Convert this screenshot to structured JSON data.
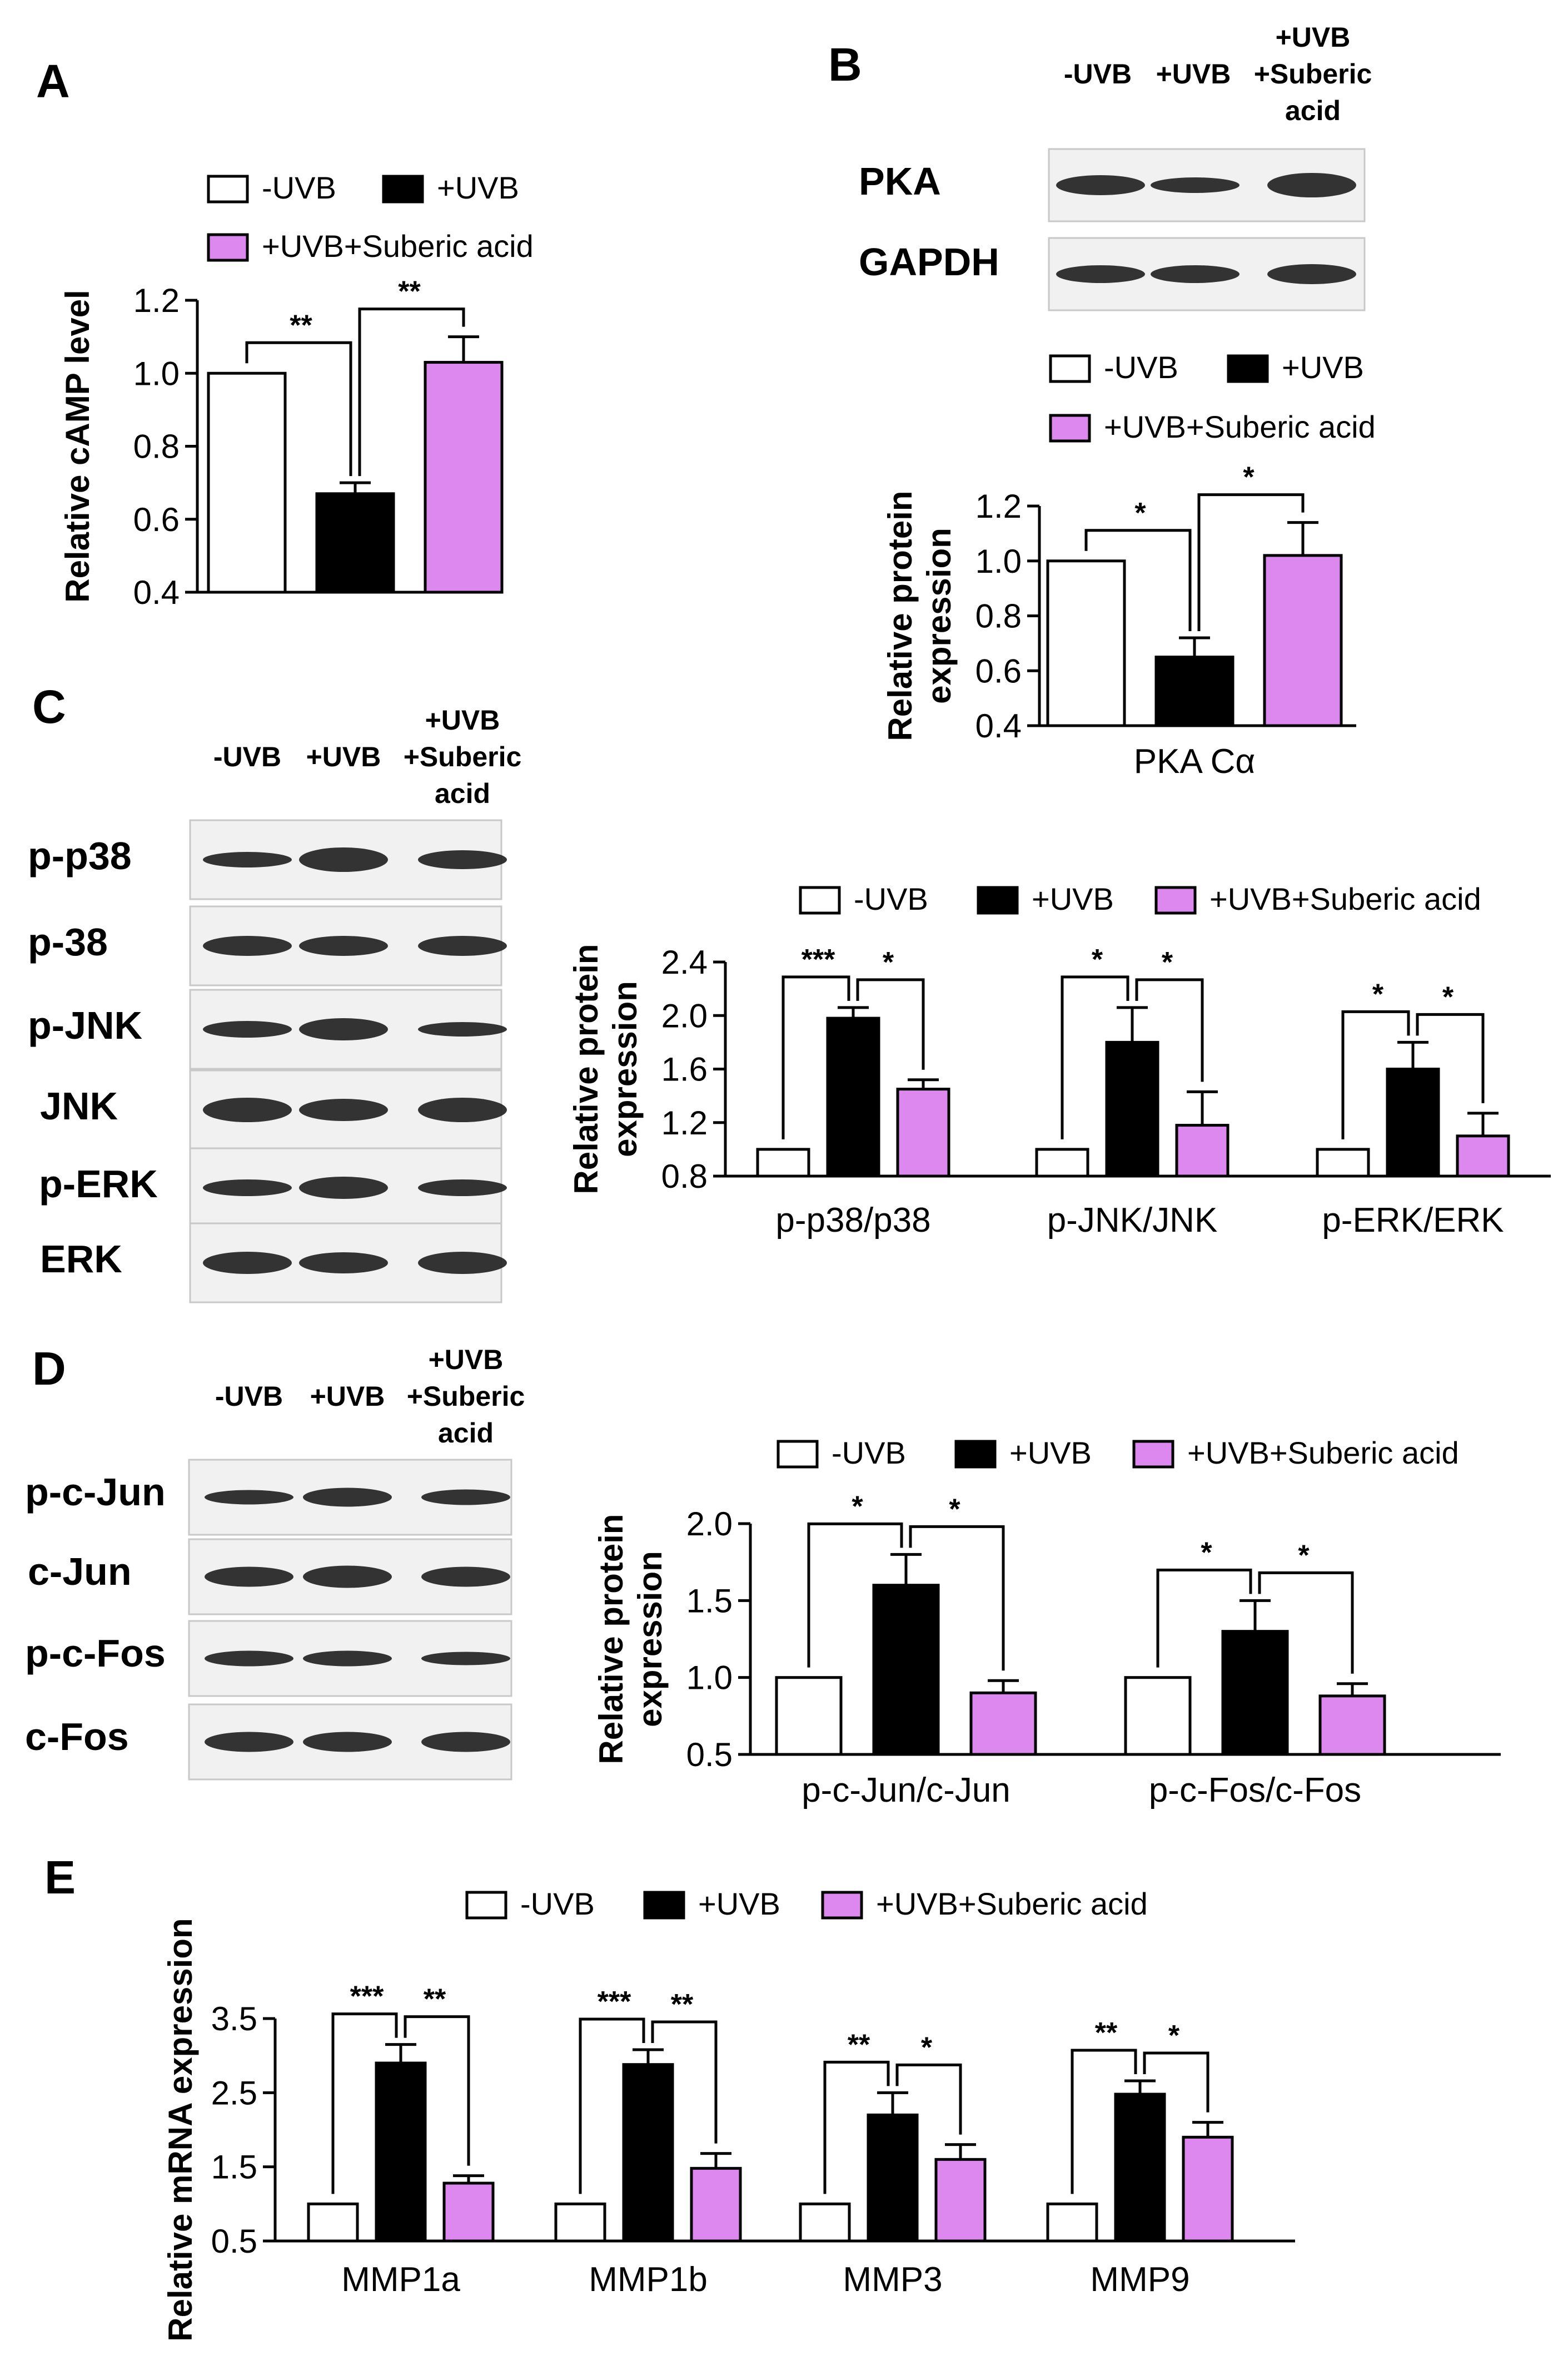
{
  "legend": {
    "neg_uvb": "-UVB",
    "pos_uvb": "+UVB",
    "uvb_suberic": "+UVB+Suberic acid"
  },
  "colors": {
    "neg_uvb": "#ffffff",
    "pos_uvb": "#000000",
    "uvb_suberic": "#dd88ee"
  },
  "lanes": {
    "neg_uvb": "-UVB",
    "pos_uvb": "+UVB",
    "uvb_suberic_1": "+UVB",
    "uvb_suberic_2": "+Suberic",
    "uvb_suberic_3": "acid"
  },
  "blots": {
    "B": [
      "PKA",
      "GAPDH"
    ],
    "C": [
      "p-p38",
      "p-38",
      "p-JNK",
      "JNK",
      "p-ERK",
      "ERK"
    ],
    "D": [
      "p-c-Jun",
      "c-Jun",
      "p-c-Fos",
      "c-Fos"
    ]
  },
  "chart_data": [
    {
      "panel": "A",
      "type": "bar",
      "ylabel": "Relative cAMP level",
      "ylim": [
        0.4,
        1.2
      ],
      "yticks": [
        "0.4",
        "0.6",
        "0.8",
        "1.0",
        "1.2"
      ],
      "categories": [
        ""
      ],
      "series": [
        {
          "name": "-UVB",
          "values": [
            1.0
          ],
          "errors": [
            0
          ]
        },
        {
          "name": "+UVB",
          "values": [
            0.67
          ],
          "errors": [
            0.03
          ]
        },
        {
          "name": "+UVB+Suberic acid",
          "values": [
            1.03
          ],
          "errors": [
            0.07
          ]
        }
      ],
      "significance": [
        [
          "**",
          "**"
        ]
      ],
      "legend_position": "top"
    },
    {
      "panel": "B",
      "type": "bar",
      "ylabel": "Relative protein expression",
      "ylim": [
        0.4,
        1.2
      ],
      "yticks": [
        "0.4",
        "0.6",
        "0.8",
        "1.0",
        "1.2"
      ],
      "categories": [
        "PKA Cα"
      ],
      "series": [
        {
          "name": "-UVB",
          "values": [
            1.0
          ],
          "errors": [
            0
          ]
        },
        {
          "name": "+UVB",
          "values": [
            0.65
          ],
          "errors": [
            0.07
          ]
        },
        {
          "name": "+UVB+Suberic acid",
          "values": [
            1.02
          ],
          "errors": [
            0.12
          ]
        }
      ],
      "significance": [
        [
          "*",
          "*"
        ]
      ],
      "legend_position": "top"
    },
    {
      "panel": "C",
      "type": "bar",
      "ylabel": "Relative protein expression",
      "ylim": [
        0.8,
        2.4
      ],
      "yticks": [
        "0.8",
        "1.2",
        "1.6",
        "2.0",
        "2.4"
      ],
      "categories": [
        "p-p38/p38",
        "p-JNK/JNK",
        "p-ERK/ERK"
      ],
      "series": [
        {
          "name": "-UVB",
          "values": [
            1.0,
            1.0,
            1.0
          ],
          "errors": [
            0,
            0,
            0
          ]
        },
        {
          "name": "+UVB",
          "values": [
            1.98,
            1.8,
            1.6
          ],
          "errors": [
            0.08,
            0.26,
            0.2
          ]
        },
        {
          "name": "+UVB+Suberic acid",
          "values": [
            1.45,
            1.18,
            1.1
          ],
          "errors": [
            0.07,
            0.25,
            0.17
          ]
        }
      ],
      "significance": [
        [
          "***",
          "*"
        ],
        [
          "*",
          "*"
        ],
        [
          "*",
          "*"
        ]
      ],
      "legend_position": "top"
    },
    {
      "panel": "D",
      "type": "bar",
      "ylabel": "Relative protein expression",
      "ylim": [
        0.5,
        2.0
      ],
      "yticks": [
        "0.5",
        "1.0",
        "1.5",
        "2.0"
      ],
      "categories": [
        "p-c-Jun/c-Jun",
        "p-c-Fos/c-Fos"
      ],
      "series": [
        {
          "name": "-UVB",
          "values": [
            1.0,
            1.0
          ],
          "errors": [
            0,
            0
          ]
        },
        {
          "name": "+UVB",
          "values": [
            1.6,
            1.3
          ],
          "errors": [
            0.2,
            0.2
          ]
        },
        {
          "name": "+UVB+Suberic acid",
          "values": [
            0.9,
            0.88
          ],
          "errors": [
            0.08,
            0.08
          ]
        }
      ],
      "significance": [
        [
          "*",
          "*"
        ],
        [
          "*",
          "*"
        ]
      ],
      "legend_position": "top"
    },
    {
      "panel": "E",
      "type": "bar",
      "ylabel": "Relative mRNA expression",
      "ylim": [
        0.5,
        3.5
      ],
      "yticks": [
        "0.5",
        "1.5",
        "2.5",
        "3.5"
      ],
      "categories": [
        "MMP1a",
        "MMP1b",
        "MMP3",
        "MMP9"
      ],
      "series": [
        {
          "name": "-UVB",
          "values": [
            1.0,
            1.0,
            1.0,
            1.0
          ],
          "errors": [
            0,
            0,
            0,
            0
          ]
        },
        {
          "name": "+UVB",
          "values": [
            2.9,
            2.88,
            2.2,
            2.48
          ],
          "errors": [
            0.25,
            0.2,
            0.3,
            0.18
          ]
        },
        {
          "name": "+UVB+Suberic acid",
          "values": [
            1.28,
            1.48,
            1.6,
            1.9
          ],
          "errors": [
            0.1,
            0.2,
            0.2,
            0.2
          ]
        }
      ],
      "significance": [
        [
          "***",
          "**"
        ],
        [
          "***",
          "**"
        ],
        [
          "**",
          "*"
        ],
        [
          "**",
          "*"
        ]
      ],
      "legend_position": "top"
    }
  ]
}
